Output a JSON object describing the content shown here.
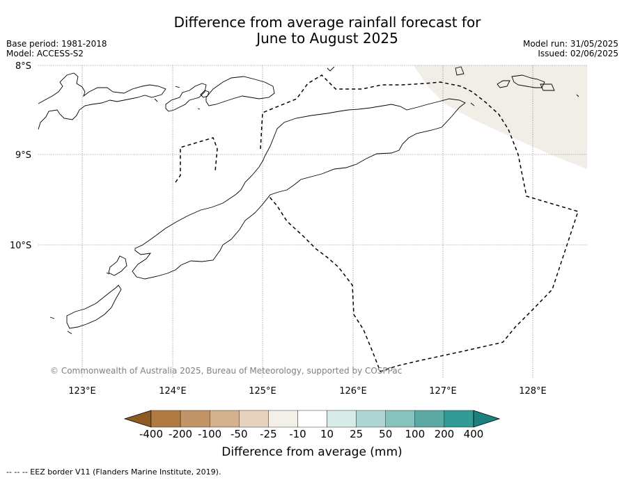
{
  "title_line1": "Difference from average rainfall forecast for",
  "title_line2": "June to August 2025",
  "base_period": "Base period: 1981-2018",
  "model": "Model: ACCESS-S2",
  "model_run": "Model run: 31/05/2025",
  "issued": "Issued: 02/06/2025",
  "lat_labels": [
    "8°S",
    "9°S",
    "10°S"
  ],
  "lon_labels": [
    "123°E",
    "124°E",
    "125°E",
    "126°E",
    "127°E",
    "128°E"
  ],
  "copyright": "© Commonwealth of Australia 2025, Bureau of Meteorology, supported by COSPPac",
  "colorbar": {
    "labels": [
      "-400",
      "-200",
      "-100",
      "-50",
      "-25",
      "-10",
      "10",
      "25",
      "50",
      "100",
      "200",
      "400"
    ],
    "colors": [
      "#8e5a24",
      "#b07a43",
      "#c29568",
      "#d4b28f",
      "#e5d2bf",
      "#f3efe9",
      "#ffffff",
      "#d7ebe8",
      "#afd6d2",
      "#87c2bc",
      "#5ca9a4",
      "#339b96",
      "#1e807c"
    ],
    "title": "Difference from average (mm)"
  },
  "footnote": "--  --  -- EEZ border V11 (Flanders Marine Institute, 2019)."
}
